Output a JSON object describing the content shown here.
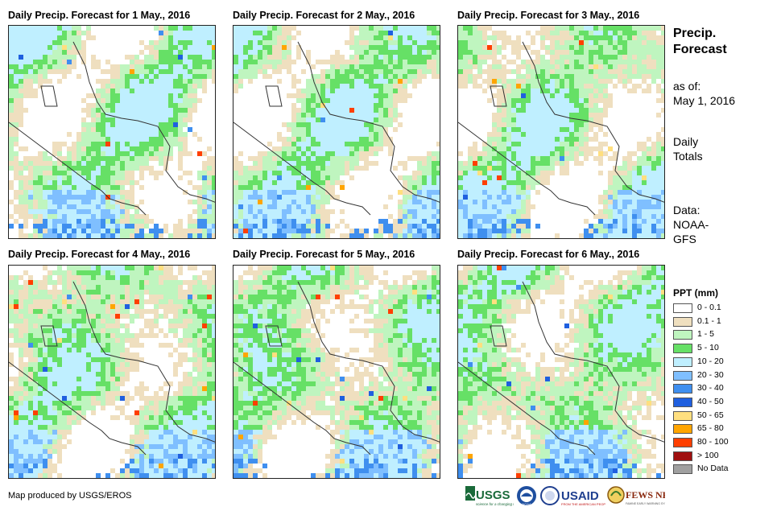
{
  "panels": [
    {
      "title": "Daily Precip. Forecast for 1 May., 2016"
    },
    {
      "title": "Daily Precip. Forecast for 2 May., 2016"
    },
    {
      "title": "Daily Precip. Forecast for 3 May., 2016"
    },
    {
      "title": "Daily Precip. Forecast for 4 May., 2016"
    },
    {
      "title": "Daily Precip. Forecast for 5 May., 2016"
    },
    {
      "title": "Daily Precip. Forecast for 6 May., 2016"
    }
  ],
  "sidebar": {
    "title_line1": "Precip.",
    "title_line2": "Forecast",
    "asof_line1": "as of:",
    "asof_line2": "May 1, 2016",
    "totals_line1": "Daily",
    "totals_line2": "Totals",
    "data_line1": "Data:",
    "data_line2": "NOAA-",
    "data_line3": "GFS"
  },
  "legend": {
    "title": "PPT (mm)",
    "items": [
      {
        "label": "0 - 0.1",
        "color": "#ffffff"
      },
      {
        "label": "0.1 - 1",
        "color": "#efdfbf"
      },
      {
        "label": "1 - 5",
        "color": "#bff5bf"
      },
      {
        "label": "5 - 10",
        "color": "#66e066"
      },
      {
        "label": "10 - 20",
        "color": "#bfefff"
      },
      {
        "label": "20 - 30",
        "color": "#7fbfff"
      },
      {
        "label": "30 - 40",
        "color": "#3f8fef"
      },
      {
        "label": "40 - 50",
        "color": "#1f5fdf"
      },
      {
        "label": "50 - 65",
        "color": "#ffdf7f"
      },
      {
        "label": "65 - 80",
        "color": "#ffa500"
      },
      {
        "label": "80 - 100",
        "color": "#ff3f00"
      },
      {
        "label": "> 100",
        "color": "#a01010"
      },
      {
        "label": "No Data",
        "color": "#a0a0a0"
      }
    ]
  },
  "footer": {
    "credit": "Map produced by USGS/EROS",
    "logos": [
      "USGS",
      "NOAA",
      "USAID",
      "FEWS NET"
    ]
  }
}
